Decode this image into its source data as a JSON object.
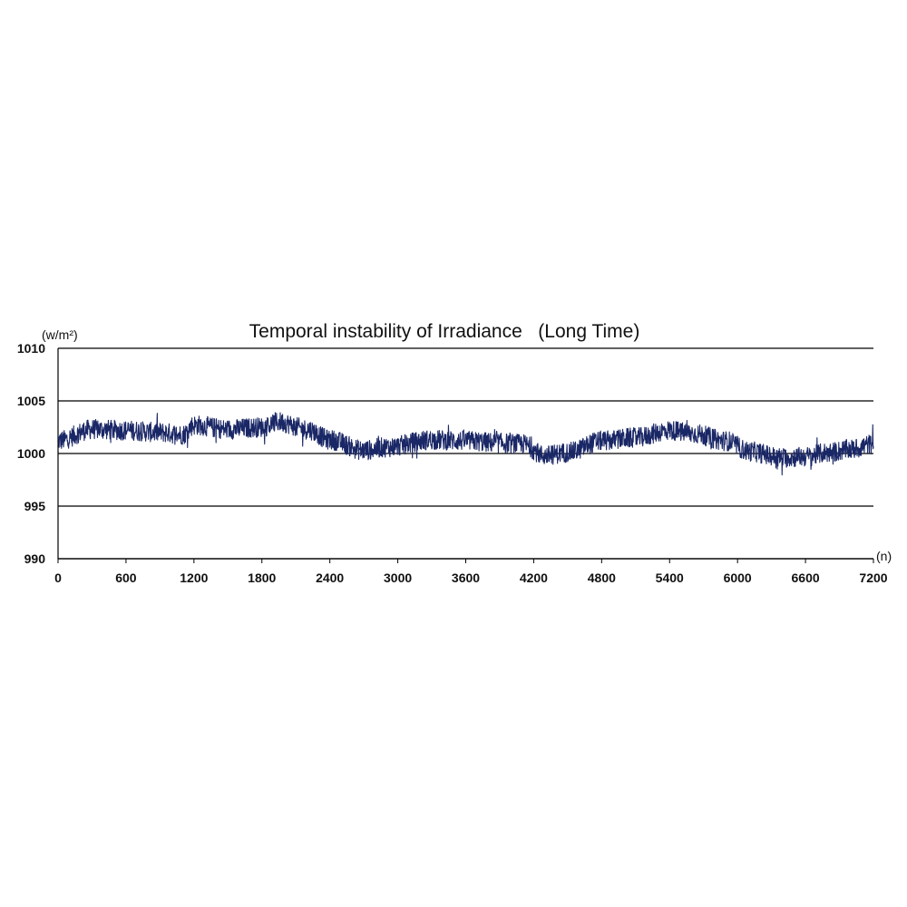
{
  "chart_data": {
    "type": "line",
    "title": "Temporal instability of Irradiance   (Long Time)",
    "ylabel": "(w/m²)",
    "xlabel": "(n)",
    "xlim": [
      0,
      7200
    ],
    "ylim": [
      990,
      1010
    ],
    "x_ticks": [
      "0",
      "600",
      "1200",
      "1800",
      "2400",
      "3000",
      "3600",
      "4200",
      "4800",
      "5400",
      "6000",
      "6600",
      "7200"
    ],
    "y_ticks": [
      "990",
      "995",
      "1000",
      "1005",
      "1010"
    ],
    "grid": "horizontal",
    "legend": "none",
    "series": [
      {
        "x": [
          0,
          300,
          600,
          900,
          1100,
          1200,
          1500,
          1800,
          1950,
          2200,
          2400,
          2700,
          2900,
          3300,
          3600,
          3900,
          4100,
          4300,
          4500,
          4800,
          5100,
          5400,
          5600,
          5900,
          6100,
          6400,
          6600,
          6800,
          7000,
          7200
        ],
        "values": [
          1001.2,
          1002.3,
          1002.2,
          1002.0,
          1001.8,
          1002.7,
          1002.3,
          1002.5,
          1003.0,
          1002.3,
          1001.3,
          1000.3,
          1000.6,
          1001.3,
          1001.2,
          1001.0,
          1000.9,
          999.8,
          1000.1,
          1001.2,
          1001.5,
          1002.2,
          1001.9,
          1001.2,
          1000.2,
          999.6,
          999.7,
          1000.1,
          1000.4,
          1000.9
        ],
        "color": "#1a2766"
      }
    ]
  }
}
